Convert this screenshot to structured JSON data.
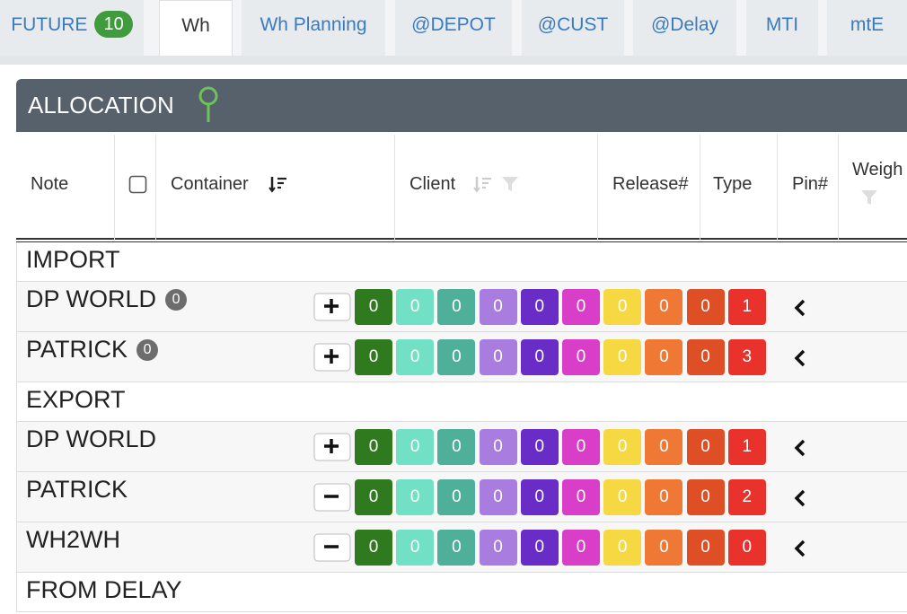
{
  "tabs": [
    {
      "label": "FUTURE",
      "badge": 10
    },
    {
      "label": "Wh",
      "active": true
    },
    {
      "label": "Wh Planning"
    },
    {
      "label": "@DEPOT"
    },
    {
      "label": "@CUST"
    },
    {
      "label": "@Delay"
    },
    {
      "label": "MTI"
    },
    {
      "label": "mtE"
    }
  ],
  "panel": {
    "title": "ALLOCATION"
  },
  "columns": [
    "Note",
    "Container",
    "Client",
    "Release#",
    "Type",
    "Pin#",
    "Weigh"
  ],
  "count_colors": [
    "#2f7a1f",
    "#72e0c4",
    "#4fb09a",
    "#a87ddf",
    "#6a2cc6",
    "#d93ec8",
    "#f6d843",
    "#ef7834",
    "#df4f26",
    "#e8322b"
  ],
  "groups": [
    {
      "label": "IMPORT",
      "rows": [
        {
          "name": "DP WORLD",
          "badge": 0,
          "expanded": false,
          "counts": [
            0,
            0,
            0,
            0,
            0,
            0,
            0,
            0,
            0,
            1
          ]
        },
        {
          "name": "PATRICK",
          "badge": 0,
          "expanded": false,
          "counts": [
            0,
            0,
            0,
            0,
            0,
            0,
            0,
            0,
            0,
            3
          ]
        }
      ]
    },
    {
      "label": "EXPORT",
      "rows": [
        {
          "name": "DP WORLD",
          "expanded": false,
          "counts": [
            0,
            0,
            0,
            0,
            0,
            0,
            0,
            0,
            0,
            1
          ]
        },
        {
          "name": "PATRICK",
          "expanded": true,
          "counts": [
            0,
            0,
            0,
            0,
            0,
            0,
            0,
            0,
            0,
            2
          ]
        },
        {
          "name": "WH2WH",
          "expanded": true,
          "counts": [
            0,
            0,
            0,
            0,
            0,
            0,
            0,
            0,
            0,
            0
          ]
        }
      ]
    },
    {
      "label": "FROM DELAY",
      "rows": []
    }
  ]
}
